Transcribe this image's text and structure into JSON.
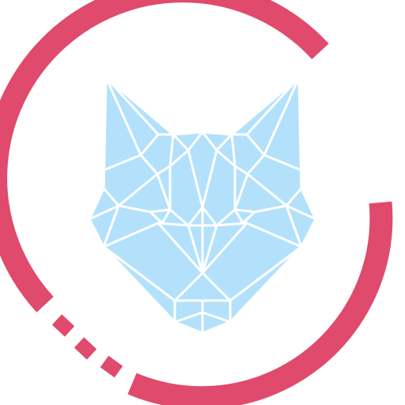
{
  "logo": {
    "name": "geometric-fox-logo",
    "colors": {
      "ring": "#e04a6c",
      "fox_fill": "#b3e1fb",
      "fox_lines": "#ffffff",
      "background": "#ffffff"
    },
    "ring_dash_count": 3
  }
}
